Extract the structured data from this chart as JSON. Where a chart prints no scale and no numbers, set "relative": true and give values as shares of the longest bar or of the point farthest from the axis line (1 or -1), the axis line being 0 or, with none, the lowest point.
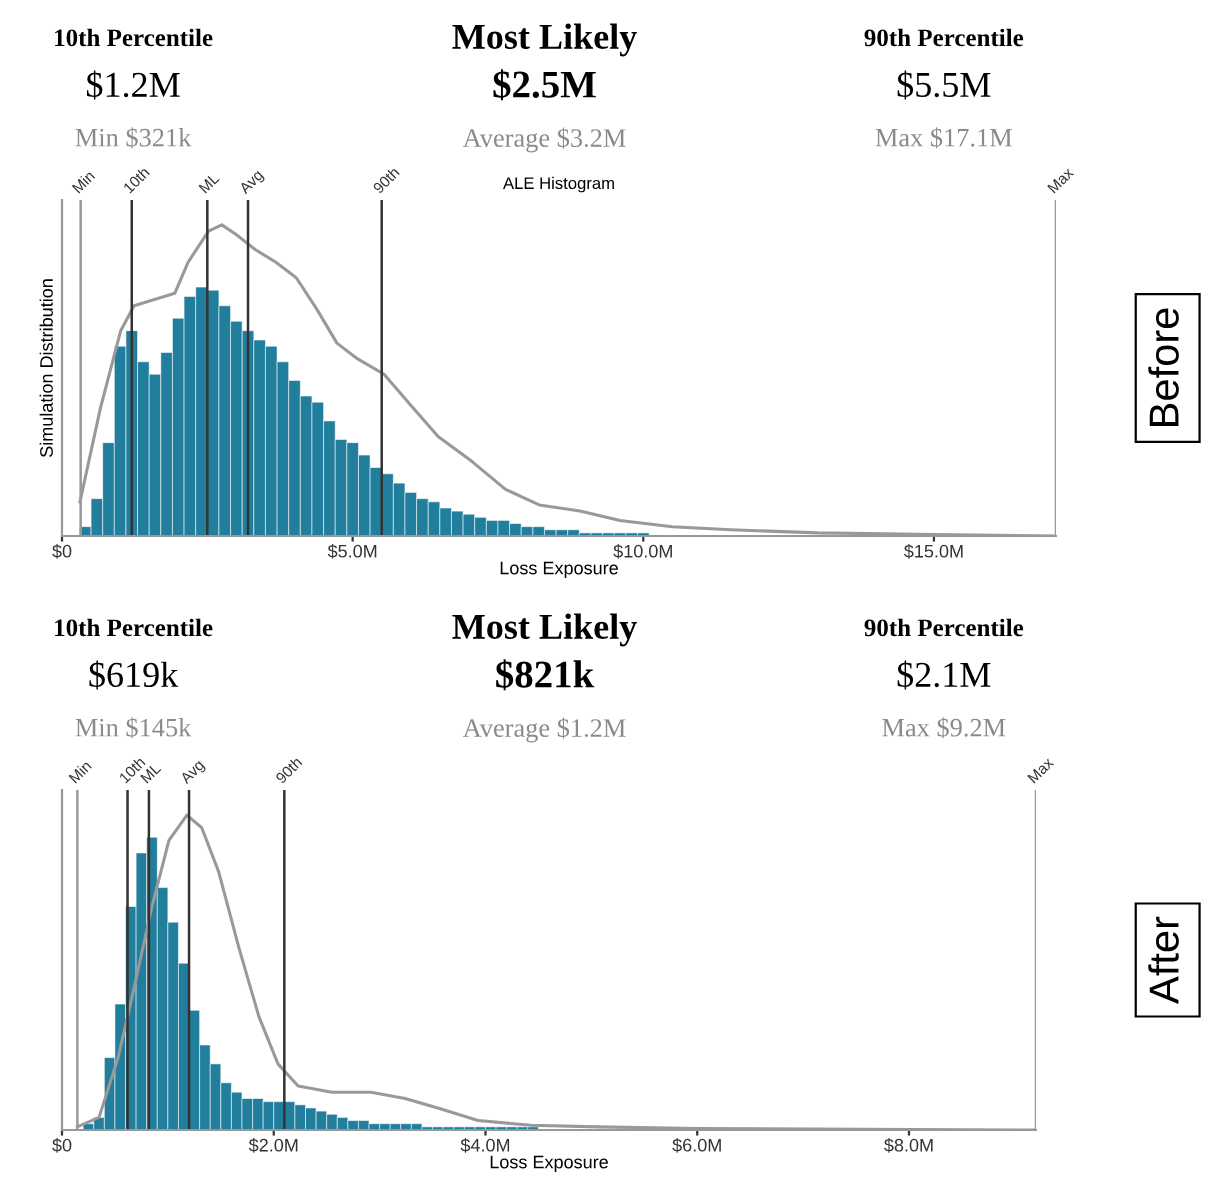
{
  "chart_data": [
    {
      "type": "histogram",
      "title": "ALE Histogram",
      "xlabel": "Loss Exposure",
      "ylabel": "Simulation Distribution",
      "relative": true,
      "xlim": [
        0,
        17.1
      ],
      "xticks": [
        {
          "value": 0,
          "label": "$0"
        },
        {
          "value": 5,
          "label": "$5.0M"
        },
        {
          "value": 10,
          "label": "$10.0M"
        },
        {
          "value": 15,
          "label": "$15.0M"
        }
      ],
      "series": [
        {
          "type": "histogram",
          "color": "#217e9c",
          "bins": [
            0.3,
            0.5,
            0.7,
            0.9,
            1.1,
            1.3,
            1.5,
            1.7,
            1.9,
            2.1,
            2.3,
            2.5,
            2.7,
            2.9,
            3.1,
            3.3,
            3.5,
            3.7,
            3.9,
            4.1,
            4.3,
            4.5,
            4.7,
            4.9,
            5.1,
            5.3,
            5.5,
            5.7,
            5.9,
            6.1,
            6.3,
            6.5,
            6.7,
            6.9,
            7.1,
            7.3,
            7.5,
            7.7,
            7.9,
            8.1,
            8.3,
            8.5,
            8.7,
            8.9,
            9.1,
            9.3,
            9.5,
            9.7,
            9.9,
            10.1
          ],
          "values": [
            0.03,
            0.12,
            0.3,
            0.61,
            0.66,
            0.56,
            0.52,
            0.59,
            0.7,
            0.77,
            0.8,
            0.79,
            0.74,
            0.69,
            0.66,
            0.63,
            0.61,
            0.56,
            0.5,
            0.45,
            0.43,
            0.37,
            0.31,
            0.3,
            0.26,
            0.22,
            0.2,
            0.17,
            0.14,
            0.12,
            0.11,
            0.09,
            0.08,
            0.07,
            0.06,
            0.05,
            0.05,
            0.04,
            0.03,
            0.03,
            0.02,
            0.02,
            0.02,
            0.01,
            0.01,
            0.01,
            0.01,
            0.01,
            0.01
          ]
        },
        {
          "type": "line",
          "color": "#999999",
          "x": [
            0.31,
            0.66,
            1.01,
            1.24,
            1.59,
            1.94,
            2.17,
            2.52,
            2.75,
            2.99,
            3.33,
            3.68,
            4.03,
            4.38,
            4.73,
            5.08,
            5.54,
            6.0,
            6.47,
            7.05,
            7.63,
            8.21,
            8.91,
            9.6,
            10.5,
            11.5,
            13,
            15,
            17.1
          ],
          "values": [
            0.11,
            0.41,
            0.66,
            0.74,
            0.76,
            0.78,
            0.88,
            0.98,
            1.0,
            0.97,
            0.92,
            0.88,
            0.83,
            0.73,
            0.62,
            0.57,
            0.52,
            0.42,
            0.32,
            0.24,
            0.15,
            0.1,
            0.08,
            0.05,
            0.03,
            0.02,
            0.01,
            0.005,
            0
          ]
        }
      ],
      "ref_lines": [
        {
          "axis": "x",
          "value": 0.321,
          "label": "Min",
          "color": "#999999"
        },
        {
          "axis": "x",
          "value": 1.2,
          "label": "10th",
          "color": "#333333"
        },
        {
          "axis": "x",
          "value": 2.5,
          "label": "ML",
          "color": "#333333"
        },
        {
          "axis": "x",
          "value": 3.2,
          "label": "Avg",
          "color": "#333333"
        },
        {
          "axis": "x",
          "value": 5.5,
          "label": "90th",
          "color": "#333333"
        },
        {
          "axis": "x",
          "value": 17.1,
          "label": "Max",
          "color": "#999999"
        }
      ],
      "annotations": [
        "10th Percentile",
        "$1.2M",
        "Min $321k",
        "Most Likely",
        "$2.5M",
        "Average $3.2M",
        "90th Percentile",
        "$5.5M",
        "Max $17.1M",
        "Before"
      ]
    },
    {
      "type": "histogram",
      "xlabel": "Loss Exposure",
      "relative": true,
      "xlim": [
        0,
        9.2
      ],
      "xticks": [
        {
          "value": 0,
          "label": "$0"
        },
        {
          "value": 2,
          "label": "$2.0M"
        },
        {
          "value": 4,
          "label": "$4.0M"
        },
        {
          "value": 6,
          "label": "$6.0M"
        },
        {
          "value": 8,
          "label": "$8.0M"
        }
      ],
      "series": [
        {
          "type": "histogram",
          "color": "#217e9c",
          "bins": [
            0.2,
            0.3,
            0.4,
            0.5,
            0.6,
            0.7,
            0.8,
            0.9,
            1.0,
            1.1,
            1.2,
            1.3,
            1.4,
            1.5,
            1.6,
            1.7,
            1.8,
            1.9,
            2.0,
            2.1,
            2.2,
            2.3,
            2.4,
            2.5,
            2.6,
            2.7,
            2.8,
            2.9,
            3.0,
            3.1,
            3.2,
            3.3,
            3.4,
            3.5,
            3.6,
            3.7,
            3.8,
            3.9,
            4.0,
            4.1,
            4.2,
            4.3,
            4.4,
            4.5
          ],
          "values": [
            0.02,
            0.04,
            0.23,
            0.4,
            0.71,
            0.88,
            0.93,
            0.77,
            0.66,
            0.53,
            0.38,
            0.27,
            0.21,
            0.15,
            0.12,
            0.1,
            0.1,
            0.09,
            0.09,
            0.09,
            0.08,
            0.07,
            0.06,
            0.05,
            0.04,
            0.03,
            0.03,
            0.02,
            0.02,
            0.02,
            0.02,
            0.02,
            0.01,
            0.01,
            0.01,
            0.01,
            0.01,
            0.01,
            0.01,
            0.01,
            0.01,
            0.01,
            0.01
          ]
        },
        {
          "type": "line",
          "color": "#999999",
          "x": [
            0.145,
            0.35,
            0.53,
            0.66,
            0.85,
            1.01,
            1.18,
            1.32,
            1.48,
            1.67,
            1.86,
            2.04,
            2.23,
            2.55,
            2.92,
            3.24,
            3.55,
            3.93,
            4.43,
            5.06,
            6.0,
            9.2
          ],
          "values": [
            0.01,
            0.04,
            0.23,
            0.42,
            0.71,
            0.92,
            1.0,
            0.96,
            0.82,
            0.58,
            0.36,
            0.21,
            0.14,
            0.12,
            0.12,
            0.1,
            0.07,
            0.03,
            0.015,
            0.01,
            0.005,
            0
          ]
        }
      ],
      "ref_lines": [
        {
          "axis": "x",
          "value": 0.145,
          "label": "Min",
          "color": "#999999"
        },
        {
          "axis": "x",
          "value": 0.619,
          "label": "10th",
          "color": "#333333"
        },
        {
          "axis": "x",
          "value": 0.821,
          "label": "ML",
          "color": "#333333"
        },
        {
          "axis": "x",
          "value": 1.2,
          "label": "Avg",
          "color": "#333333"
        },
        {
          "axis": "x",
          "value": 2.1,
          "label": "90th",
          "color": "#333333"
        },
        {
          "axis": "x",
          "value": 9.2,
          "label": "Max",
          "color": "#999999"
        }
      ],
      "annotations": [
        "10th Percentile",
        "$619k",
        "Min $145k",
        "Most Likely",
        "$821k",
        "Average $1.2M",
        "90th Percentile",
        "$2.1M",
        "Max $9.2M",
        "After"
      ]
    }
  ]
}
